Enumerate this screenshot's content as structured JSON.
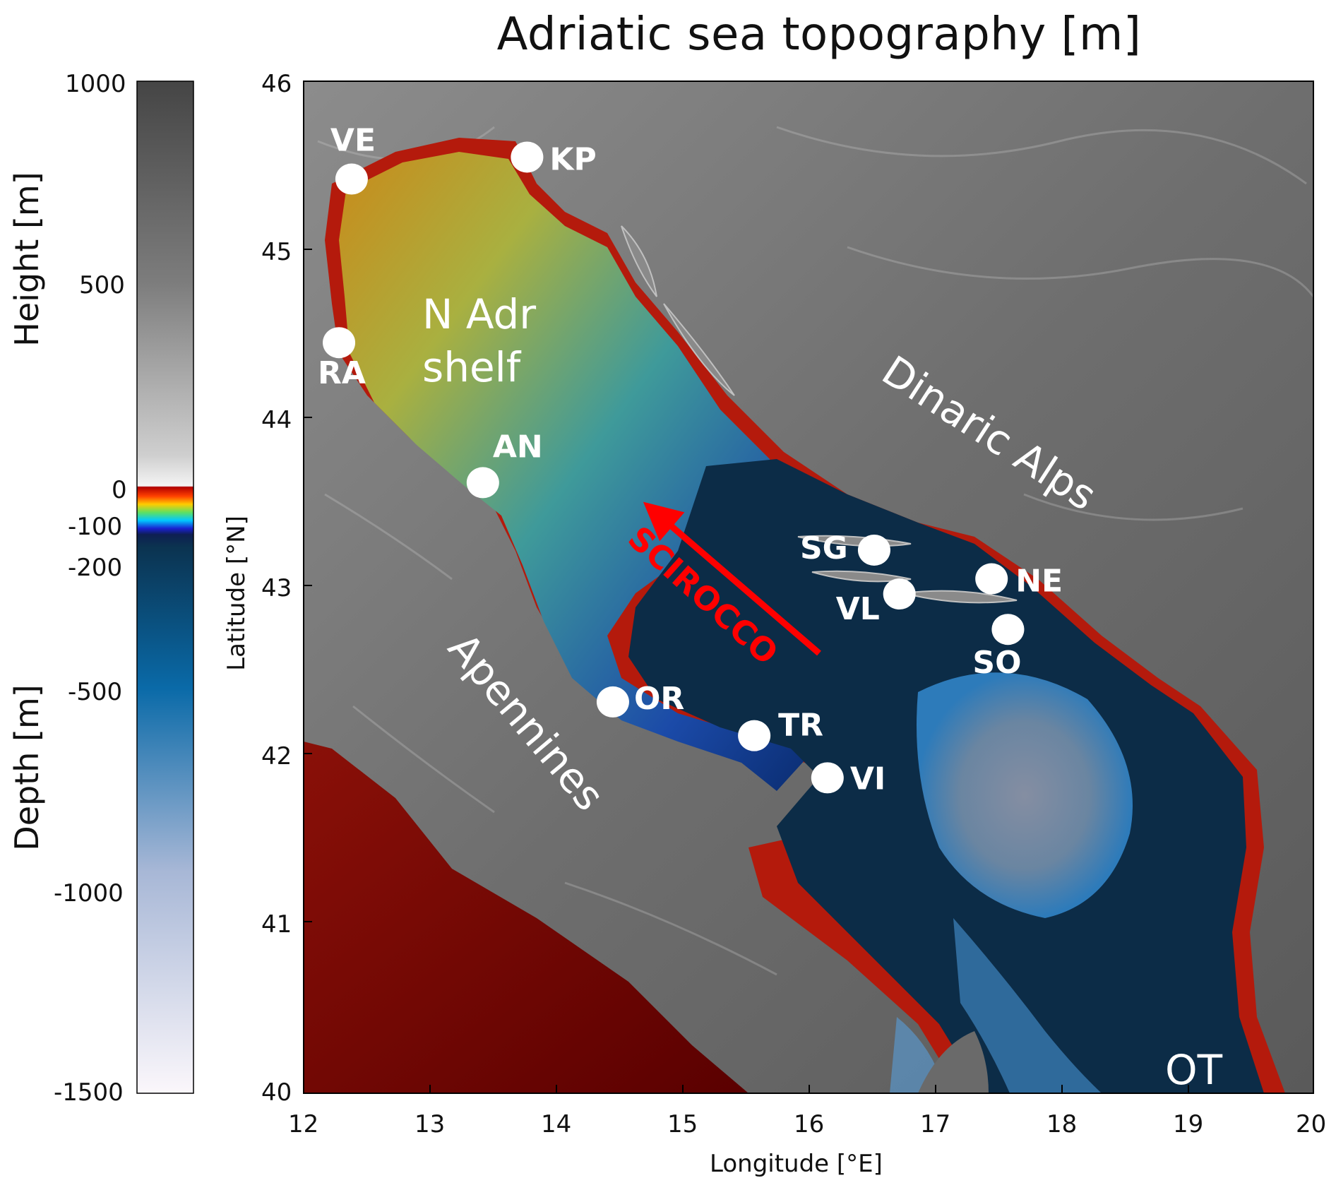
{
  "title": "Adriatic sea topography [m]",
  "colorbar": {
    "height_label": "Height [m]",
    "depth_label": "Depth [m]",
    "ticks": [
      "1000",
      "500",
      "0",
      "-100",
      "-200",
      "-500",
      "-1000",
      "-1500"
    ]
  },
  "axes": {
    "x_label": "Longitude [°E]",
    "y_label": "Latitude [°N]",
    "x_ticks": [
      "12",
      "13",
      "14",
      "15",
      "16",
      "17",
      "18",
      "19",
      "20"
    ],
    "y_ticks": [
      "46",
      "45",
      "44",
      "43",
      "42",
      "41",
      "40"
    ]
  },
  "stations": [
    {
      "code": "VE",
      "lon": 12.38,
      "lat": 45.42
    },
    {
      "code": "KP",
      "lon": 13.77,
      "lat": 45.55
    },
    {
      "code": "RA",
      "lon": 12.28,
      "lat": 44.45
    },
    {
      "code": "AN",
      "lon": 13.42,
      "lat": 43.62
    },
    {
      "code": "SG",
      "lon": 16.52,
      "lat": 43.22
    },
    {
      "code": "VL",
      "lon": 16.72,
      "lat": 42.96
    },
    {
      "code": "NE",
      "lon": 17.45,
      "lat": 43.05
    },
    {
      "code": "SO",
      "lon": 17.58,
      "lat": 42.75
    },
    {
      "code": "OR",
      "lon": 14.45,
      "lat": 42.32
    },
    {
      "code": "TR",
      "lon": 15.57,
      "lat": 42.12
    },
    {
      "code": "VI",
      "lon": 16.15,
      "lat": 41.87
    }
  ],
  "regions": {
    "n_adr_line1": "N Adr",
    "n_adr_line2": "shelf",
    "dinaric": "Dinaric Alps",
    "apennines": "Apennines",
    "ot": "OT"
  },
  "wind_label": "SCIROCCO",
  "colors": {
    "arrow": "#ff0000",
    "station_marker": "#ffffff",
    "deep_sea": "#0a2a44",
    "land": "#7a7a7a"
  }
}
